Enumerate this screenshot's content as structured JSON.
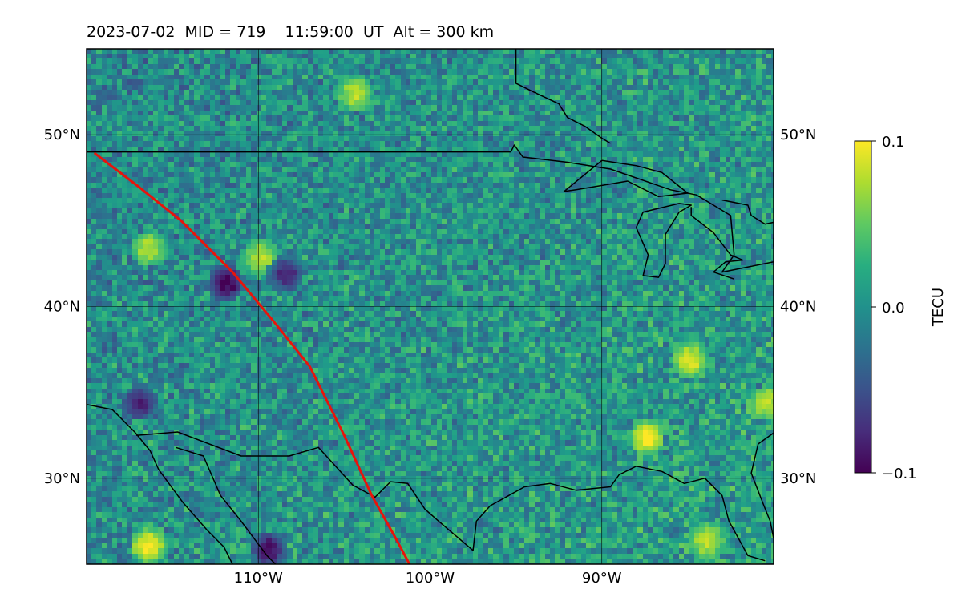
{
  "title": "2023-07-02  MID = 719    11:59:00  UT  Alt = 300 km",
  "map": {
    "lon_range": [
      -120,
      -80
    ],
    "lat_range": [
      25,
      55
    ],
    "lat_ticks": [
      {
        "value": 50,
        "label": "50°N"
      },
      {
        "value": 40,
        "label": "40°N"
      },
      {
        "value": 30,
        "label": "30°N"
      }
    ],
    "lon_ticks": [
      {
        "value": -110,
        "label": "110°W"
      },
      {
        "value": -100,
        "label": "100°W"
      },
      {
        "value": -90,
        "label": "90°W"
      }
    ],
    "track_color": "#e8140c",
    "coastline_color": "#000000"
  },
  "colorbar": {
    "label": "TECU",
    "min": -0.1,
    "max": 0.1,
    "ticks": [
      {
        "value": 0.1,
        "label": "0.1"
      },
      {
        "value": 0.0,
        "label": "0.0"
      },
      {
        "value": -0.1,
        "label": "−0.1"
      }
    ],
    "colormap": "viridis"
  },
  "chart_data": {
    "type": "heatmap",
    "title": "2023-07-02  MID = 719    11:59:00  UT  Alt = 300 km",
    "xlabel": "",
    "ylabel": "",
    "xlim": [
      -120,
      -80
    ],
    "ylim": [
      25,
      55
    ],
    "colorbar_label": "TECU",
    "clim": [
      -0.1,
      0.1
    ],
    "grid": true,
    "background_mean_TECU": 0.0,
    "hotspots": [
      {
        "lon": -116.5,
        "lat": 26.2,
        "value": 0.1
      },
      {
        "lon": -87.5,
        "lat": 32.5,
        "value": 0.1
      },
      {
        "lon": -85.0,
        "lat": 37.0,
        "value": 0.09
      },
      {
        "lon": -116.5,
        "lat": 43.5,
        "value": 0.08
      },
      {
        "lon": -110.0,
        "lat": 43.0,
        "value": 0.08
      },
      {
        "lon": -84.0,
        "lat": 26.5,
        "value": 0.08
      },
      {
        "lon": -80.5,
        "lat": 34.5,
        "value": 0.08
      },
      {
        "lon": -104.5,
        "lat": 52.5,
        "value": 0.08
      }
    ],
    "coldspots": [
      {
        "lon": -112.0,
        "lat": 41.5,
        "value": -0.1
      },
      {
        "lon": -109.5,
        "lat": 26.0,
        "value": -0.09
      },
      {
        "lon": -108.5,
        "lat": 42.0,
        "value": -0.08
      },
      {
        "lon": -117.0,
        "lat": 34.5,
        "value": -0.08
      }
    ],
    "track": {
      "lon": [
        -119.5,
        -117,
        -114.5,
        -111.5,
        -109,
        -107,
        -105,
        -103.4,
        -102,
        -101.2
      ],
      "lat": [
        48.9,
        47.0,
        45.0,
        42.0,
        39.0,
        36.5,
        32.5,
        29.0,
        26.5,
        25.0
      ]
    }
  }
}
